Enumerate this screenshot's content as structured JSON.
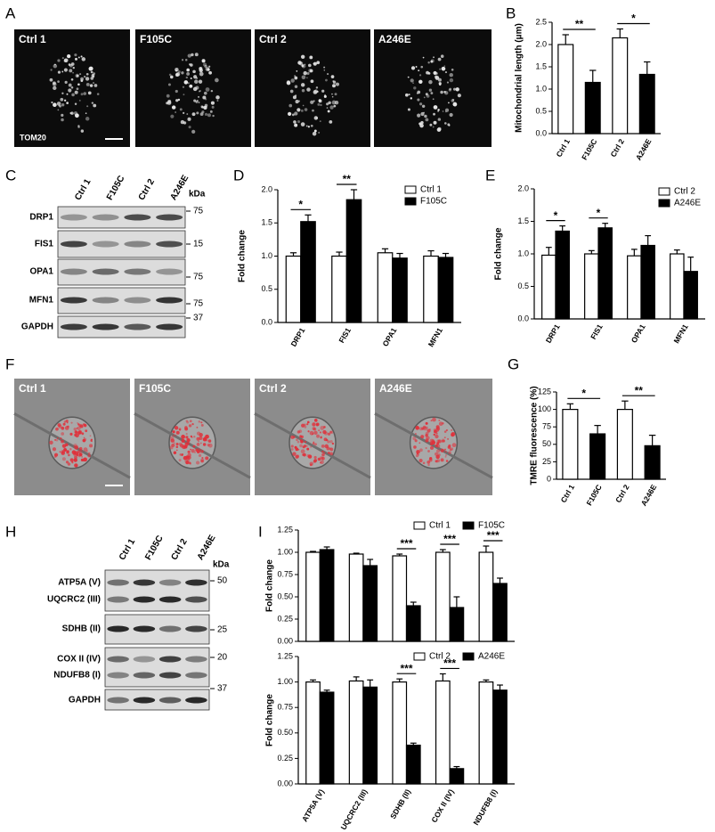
{
  "panel_labels": [
    "A",
    "B",
    "C",
    "D",
    "E",
    "F",
    "G",
    "H",
    "I"
  ],
  "image_panels": [
    {
      "labels": [
        "Ctrl 1",
        "F105C",
        "Ctrl 2",
        "A246E"
      ],
      "stain": "TOM20"
    },
    {
      "labels": [
        "Ctrl 1",
        "F105C",
        "Ctrl 2",
        "A246E"
      ]
    }
  ],
  "blots": [
    {
      "columns": [
        "Ctrl 1",
        "F105C",
        "Ctrl 2",
        "A246E"
      ],
      "unit": "kDa",
      "rows": [
        {
          "label": "DRP1",
          "marker": 75
        },
        {
          "label": "FIS1",
          "marker": 15
        },
        {
          "label": "OPA1",
          "marker": 75
        },
        {
          "label": "MFN1",
          "marker": 75
        },
        {
          "label": "GAPDH",
          "marker": 37
        }
      ]
    },
    {
      "columns": [
        "Ctrl 1",
        "F105C",
        "Ctrl 2",
        "A246E"
      ],
      "unit": "kDa",
      "rows": [
        {
          "label": "ATP5A (V)",
          "marker": 50
        },
        {
          "label": "UQCRC2 (III)",
          "marker": null
        },
        {
          "label": "SDHB (II)",
          "marker": 25
        },
        {
          "label": "COX II (IV)",
          "marker": 20
        },
        {
          "label": "NDUFB8 (I)",
          "marker": null
        },
        {
          "label": "GAPDH",
          "marker": 37
        }
      ]
    }
  ],
  "chart_data": [
    {
      "type": "bar",
      "y_label": "Mitochondrial length (μm)",
      "categories": [
        "Ctrl 1",
        "F105C",
        "Ctrl 2",
        "A246E"
      ],
      "values": [
        2.0,
        1.15,
        2.15,
        1.33
      ],
      "errors": [
        0.22,
        0.27,
        0.2,
        0.28
      ],
      "colors": [
        "#ffffff",
        "#000000",
        "#ffffff",
        "#000000"
      ],
      "significance": [
        null,
        "**",
        null,
        "*"
      ],
      "ylim": [
        0,
        2.5
      ],
      "yticks": [
        {
          "value": 0,
          "label": "0.0"
        },
        0.5,
        {
          "value": 1,
          "label": "1.0"
        },
        1.5,
        {
          "value": 2,
          "label": "2.0"
        },
        2.5
      ]
    },
    {
      "type": "bar",
      "y_label": "Fold change",
      "categories": [
        "DRP1",
        "FIS1",
        "OPA1",
        "MFN1"
      ],
      "series": [
        {
          "name": "Ctrl 1",
          "color": "#ffffff",
          "values": [
            1.0,
            1.0,
            1.05,
            1.0
          ],
          "errors": [
            0.05,
            0.06,
            0.06,
            0.08
          ]
        },
        {
          "name": "F105C",
          "color": "#000000",
          "values": [
            1.52,
            1.85,
            0.97,
            0.98
          ],
          "errors": [
            0.1,
            0.15,
            0.07,
            0.06
          ]
        }
      ],
      "significance": [
        "*",
        "**",
        null,
        null
      ],
      "ylim": [
        0,
        2
      ],
      "yticks": [
        {
          "value": 0,
          "label": "0.0"
        },
        0.5,
        {
          "value": 1,
          "label": "1.0"
        },
        1.5,
        {
          "value": 2,
          "label": "2.0"
        }
      ],
      "legend": "upper right"
    },
    {
      "type": "bar",
      "y_label": "Fold change",
      "categories": [
        "DRP1",
        "FIS1",
        "OPA1",
        "MFN1"
      ],
      "series": [
        {
          "name": "Ctrl 2",
          "color": "#ffffff",
          "values": [
            0.98,
            1.0,
            0.97,
            1.0
          ],
          "errors": [
            0.12,
            0.05,
            0.1,
            0.06
          ]
        },
        {
          "name": "A246E",
          "color": "#000000",
          "values": [
            1.35,
            1.4,
            1.13,
            0.73
          ],
          "errors": [
            0.08,
            0.07,
            0.15,
            0.22
          ]
        }
      ],
      "significance": [
        "*",
        "*",
        null,
        null
      ],
      "ylim": [
        0,
        2
      ],
      "yticks": [
        {
          "value": 0,
          "label": "0.0"
        },
        0.5,
        {
          "value": 1,
          "label": "1.0"
        },
        1.5,
        {
          "value": 2,
          "label": "2.0"
        }
      ],
      "legend": "upper right"
    },
    {
      "type": "bar",
      "y_label": "TMRE fluorescence (%)",
      "categories": [
        "Ctrl 1",
        "F105C",
        "Ctrl 2",
        "A246E"
      ],
      "values": [
        100,
        65,
        100,
        48
      ],
      "errors": [
        8,
        12,
        12,
        15
      ],
      "colors": [
        "#ffffff",
        "#000000",
        "#ffffff",
        "#000000"
      ],
      "significance": [
        null,
        "*",
        null,
        "**"
      ],
      "ylim": [
        0,
        125
      ],
      "yticks": [
        0,
        25,
        50,
        75,
        100,
        125
      ]
    },
    {
      "type": "bar",
      "y_label": "Fold change",
      "categories": [
        null,
        null,
        null,
        null,
        null
      ],
      "series": [
        {
          "name": "Ctrl 1",
          "color": "#ffffff",
          "values": [
            1.0,
            0.98,
            0.96,
            1.0,
            1.0
          ],
          "errors": [
            0.01,
            0.01,
            0.02,
            0.03,
            0.07
          ]
        },
        {
          "name": "F105C",
          "color": "#000000",
          "values": [
            1.03,
            0.85,
            0.4,
            0.38,
            0.65
          ],
          "errors": [
            0.03,
            0.07,
            0.04,
            0.12,
            0.06
          ]
        }
      ],
      "significance": [
        null,
        null,
        "***",
        "***",
        "***"
      ],
      "ylim": [
        0,
        1.25
      ],
      "yticks": [
        {
          "value": 0,
          "label": "0.00"
        },
        {
          "value": 0.25,
          "label": "0.25"
        },
        {
          "value": 0.5,
          "label": "0.50"
        },
        {
          "value": 0.75,
          "label": "0.75"
        },
        {
          "value": 1,
          "label": "1.00"
        },
        {
          "value": 1.25,
          "label": "1.25"
        }
      ],
      "legend": "upper right"
    },
    {
      "type": "bar",
      "y_label": "Fold change",
      "categories": [
        "ATP5A (V)",
        "UQCRC2 (III)",
        "SDHB (II)",
        "COX II (IV)",
        "NDUFB8 (I)"
      ],
      "series": [
        {
          "name": "Ctrl 2",
          "color": "#ffffff",
          "values": [
            1.0,
            1.01,
            1.0,
            1.01,
            1.0
          ],
          "errors": [
            0.02,
            0.04,
            0.03,
            0.07,
            0.02
          ]
        },
        {
          "name": "A246E",
          "color": "#000000",
          "values": [
            0.9,
            0.95,
            0.38,
            0.15,
            0.92
          ],
          "errors": [
            0.02,
            0.07,
            0.02,
            0.02,
            0.05
          ]
        }
      ],
      "significance": [
        null,
        null,
        "***",
        "***",
        null
      ],
      "ylim": [
        0,
        1.25
      ],
      "yticks": [
        {
          "value": 0,
          "label": "0.00"
        },
        {
          "value": 0.25,
          "label": "0.25"
        },
        {
          "value": 0.5,
          "label": "0.50"
        },
        {
          "value": 0.75,
          "label": "0.75"
        },
        {
          "value": 1,
          "label": "1.00"
        },
        {
          "value": 1.25,
          "label": "1.25"
        }
      ],
      "legend": "upper right"
    }
  ]
}
